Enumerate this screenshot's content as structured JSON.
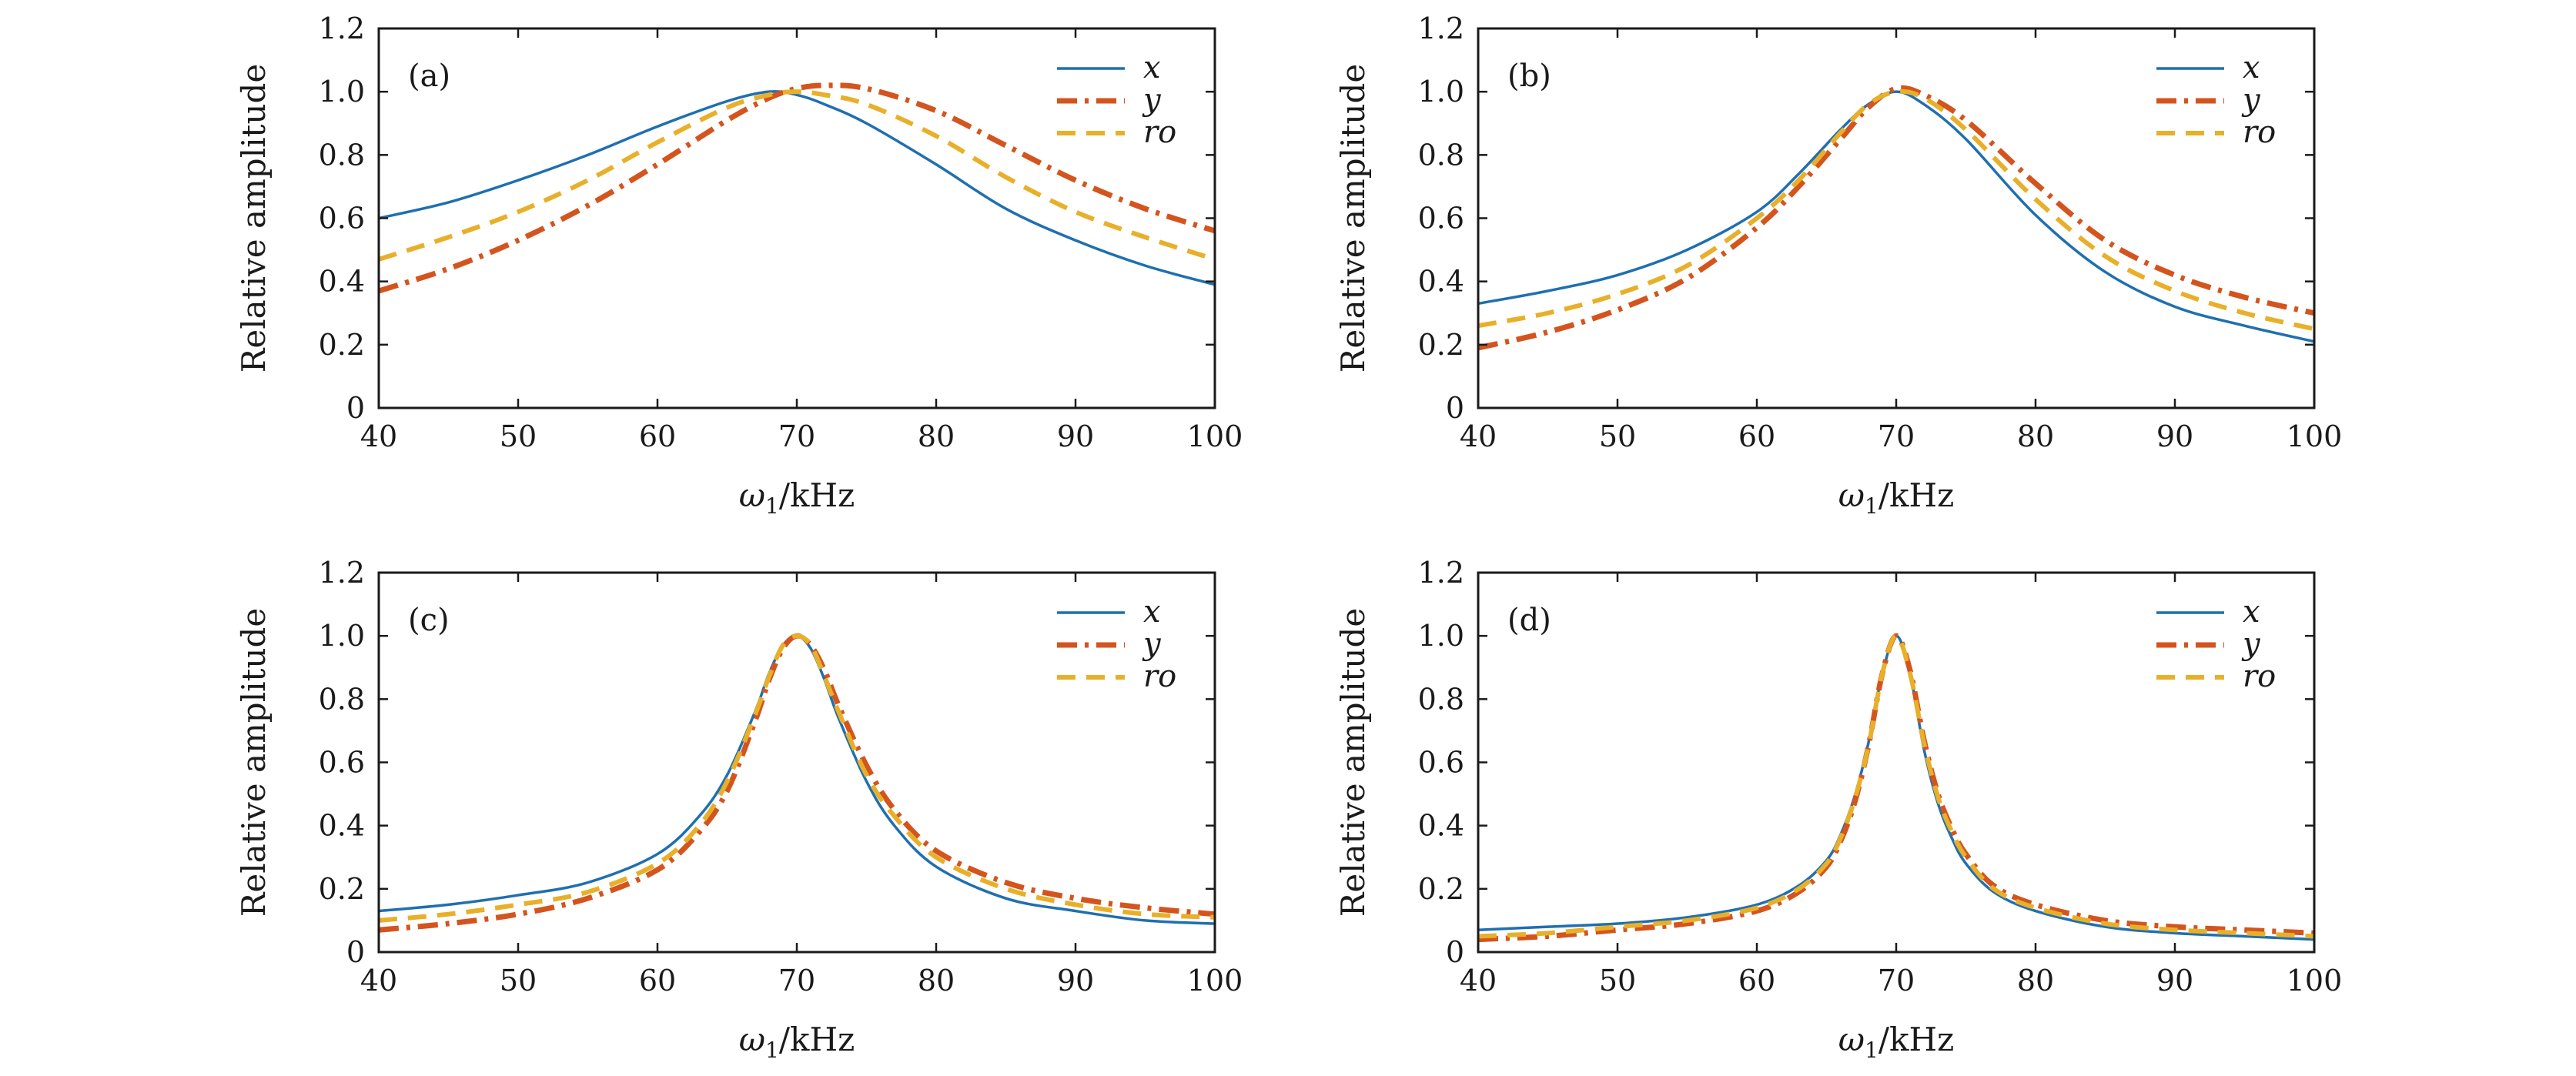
{
  "figure": {
    "colors": {
      "x": "#1f6fb0",
      "y": "#d4541e",
      "ro": "#e8b02a"
    }
  },
  "chart_data": [
    {
      "type": "line",
      "panel": "(a)",
      "xlabel": "ω1/kHz",
      "ylabel": "Relative amplitude",
      "xlim": [
        40,
        100
      ],
      "ylim": [
        0,
        1.2
      ],
      "xticks": [
        "40",
        "50",
        "60",
        "70",
        "80",
        "90",
        "100"
      ],
      "yticks": [
        "0",
        "0.2",
        "0.4",
        "0.6",
        "0.8",
        "1.0",
        "1.2"
      ],
      "legend": [
        "x",
        "y",
        "ro"
      ],
      "legend_position": "top-right",
      "x": [
        40,
        45,
        50,
        55,
        60,
        65,
        68,
        70,
        72,
        75,
        80,
        85,
        90,
        95,
        100
      ],
      "series": [
        {
          "name": "x",
          "style": "solid",
          "values": [
            0.6,
            0.65,
            0.72,
            0.8,
            0.89,
            0.97,
            1.0,
            0.99,
            0.96,
            0.9,
            0.77,
            0.63,
            0.53,
            0.45,
            0.39
          ]
        },
        {
          "name": "y",
          "style": "dash-dot",
          "values": [
            0.37,
            0.44,
            0.53,
            0.64,
            0.77,
            0.91,
            0.98,
            1.01,
            1.02,
            1.01,
            0.94,
            0.83,
            0.72,
            0.63,
            0.56
          ]
        },
        {
          "name": "ro",
          "style": "dashed",
          "values": [
            0.47,
            0.54,
            0.62,
            0.72,
            0.84,
            0.95,
            0.99,
            1.0,
            0.99,
            0.96,
            0.86,
            0.73,
            0.62,
            0.54,
            0.47
          ]
        }
      ]
    },
    {
      "type": "line",
      "panel": "(b)",
      "xlabel": "ω1/kHz",
      "ylabel": "Relative amplitude",
      "xlim": [
        40,
        100
      ],
      "ylim": [
        0,
        1.2
      ],
      "xticks": [
        "40",
        "50",
        "60",
        "70",
        "80",
        "90",
        "100"
      ],
      "yticks": [
        "0",
        "0.2",
        "0.4",
        "0.6",
        "0.8",
        "1.0",
        "1.2"
      ],
      "legend": [
        "x",
        "y",
        "ro"
      ],
      "legend_position": "top-right",
      "x": [
        40,
        45,
        50,
        55,
        60,
        63,
        66,
        68,
        70,
        72,
        75,
        80,
        85,
        90,
        95,
        100
      ],
      "series": [
        {
          "name": "x",
          "style": "solid",
          "values": [
            0.33,
            0.37,
            0.42,
            0.5,
            0.62,
            0.74,
            0.88,
            0.96,
            1.0,
            0.96,
            0.85,
            0.61,
            0.43,
            0.32,
            0.26,
            0.21
          ]
        },
        {
          "name": "y",
          "style": "dash-dot",
          "values": [
            0.19,
            0.24,
            0.31,
            0.41,
            0.57,
            0.7,
            0.85,
            0.95,
            1.01,
            0.99,
            0.91,
            0.71,
            0.53,
            0.42,
            0.35,
            0.3
          ]
        },
        {
          "name": "ro",
          "style": "dashed",
          "values": [
            0.26,
            0.3,
            0.36,
            0.45,
            0.6,
            0.72,
            0.87,
            0.96,
            1.0,
            0.98,
            0.88,
            0.66,
            0.48,
            0.37,
            0.3,
            0.25
          ]
        }
      ]
    },
    {
      "type": "line",
      "panel": "(c)",
      "xlabel": "ω1/kHz",
      "ylabel": "Relative amplitude",
      "xlim": [
        40,
        100
      ],
      "ylim": [
        0,
        1.2
      ],
      "xticks": [
        "40",
        "50",
        "60",
        "70",
        "80",
        "90",
        "100"
      ],
      "yticks": [
        "0",
        "0.2",
        "0.4",
        "0.6",
        "0.8",
        "1.0",
        "1.2"
      ],
      "legend": [
        "x",
        "y",
        "ro"
      ],
      "legend_position": "top-right",
      "x": [
        40,
        45,
        50,
        55,
        60,
        63,
        65,
        67,
        68,
        69,
        70,
        71,
        72,
        73,
        75,
        77,
        80,
        85,
        90,
        95,
        100
      ],
      "series": [
        {
          "name": "x",
          "style": "solid",
          "values": [
            0.13,
            0.15,
            0.18,
            0.22,
            0.31,
            0.43,
            0.56,
            0.76,
            0.88,
            0.97,
            1.0,
            0.96,
            0.86,
            0.74,
            0.54,
            0.4,
            0.27,
            0.17,
            0.13,
            0.1,
            0.09
          ]
        },
        {
          "name": "y",
          "style": "dash-dot",
          "values": [
            0.07,
            0.09,
            0.12,
            0.17,
            0.26,
            0.38,
            0.51,
            0.73,
            0.86,
            0.96,
            1.0,
            0.97,
            0.89,
            0.78,
            0.59,
            0.45,
            0.32,
            0.22,
            0.17,
            0.14,
            0.12
          ]
        },
        {
          "name": "ro",
          "style": "dashed",
          "values": [
            0.1,
            0.12,
            0.15,
            0.19,
            0.28,
            0.4,
            0.54,
            0.75,
            0.87,
            0.97,
            1.0,
            0.97,
            0.87,
            0.76,
            0.56,
            0.43,
            0.3,
            0.2,
            0.15,
            0.12,
            0.11
          ]
        }
      ]
    },
    {
      "type": "line",
      "panel": "(d)",
      "xlabel": "ω1/kHz",
      "ylabel": "Relative amplitude",
      "xlim": [
        40,
        100
      ],
      "ylim": [
        0,
        1.2
      ],
      "xticks": [
        "40",
        "50",
        "60",
        "70",
        "80",
        "90",
        "100"
      ],
      "yticks": [
        "0",
        "0.2",
        "0.4",
        "0.6",
        "0.8",
        "1.0",
        "1.2"
      ],
      "legend": [
        "x",
        "y",
        "ro"
      ],
      "legend_position": "top-right",
      "x": [
        40,
        45,
        50,
        55,
        60,
        63,
        65,
        66,
        67,
        68,
        69,
        70,
        71,
        72,
        73,
        74,
        75,
        77,
        80,
        85,
        90,
        95,
        100
      ],
      "series": [
        {
          "name": "x",
          "style": "solid",
          "values": [
            0.07,
            0.08,
            0.09,
            0.11,
            0.15,
            0.21,
            0.29,
            0.37,
            0.49,
            0.66,
            0.88,
            1.0,
            0.88,
            0.64,
            0.47,
            0.36,
            0.28,
            0.19,
            0.13,
            0.08,
            0.06,
            0.05,
            0.04
          ]
        },
        {
          "name": "y",
          "style": "dash-dot",
          "values": [
            0.04,
            0.05,
            0.07,
            0.09,
            0.13,
            0.19,
            0.27,
            0.35,
            0.47,
            0.65,
            0.88,
            1.0,
            0.89,
            0.67,
            0.5,
            0.39,
            0.31,
            0.21,
            0.15,
            0.1,
            0.08,
            0.07,
            0.06
          ]
        },
        {
          "name": "ro",
          "style": "dashed",
          "values": [
            0.05,
            0.06,
            0.08,
            0.1,
            0.14,
            0.2,
            0.28,
            0.36,
            0.48,
            0.65,
            0.88,
            1.0,
            0.88,
            0.66,
            0.49,
            0.38,
            0.3,
            0.2,
            0.14,
            0.09,
            0.07,
            0.06,
            0.05
          ]
        }
      ]
    }
  ]
}
